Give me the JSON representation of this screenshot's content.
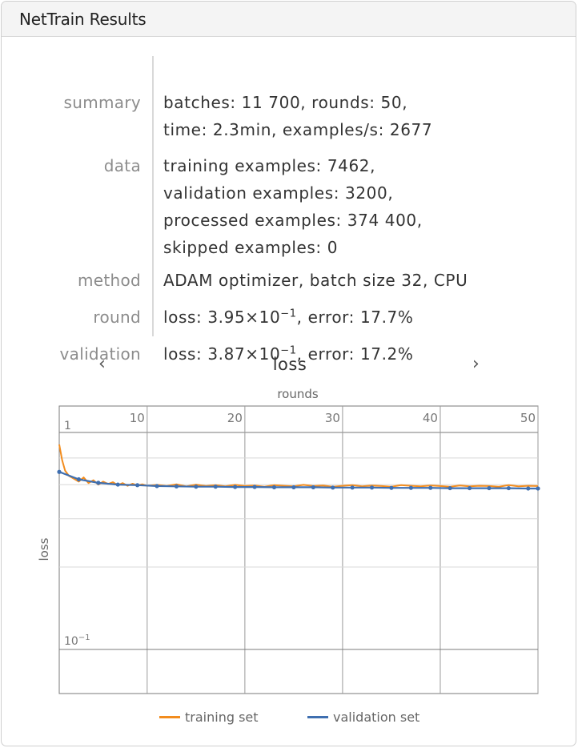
{
  "window": {
    "title": "NetTrain Results"
  },
  "summary": {
    "rows": [
      {
        "label": "summary",
        "lines": [
          "batches: 11 700, rounds: 50,",
          "time: 2.3min, examples/s: 2677"
        ]
      },
      {
        "label": "data",
        "lines": [
          "training examples: 7462,",
          "validation examples: 3200,",
          "processed examples: 374 400,",
          "skipped examples: 0"
        ]
      },
      {
        "label": "method",
        "lines": [
          "ADAM optimizer, batch size 32, CPU"
        ]
      }
    ],
    "round": {
      "label": "round",
      "loss_prefix": "loss: ",
      "loss_mantissa": "3.95",
      "times": "×",
      "base": "10",
      "exponent": "−1",
      "error_text": ", error: 17.7%"
    },
    "validation": {
      "label": "validation",
      "loss_prefix": "loss: ",
      "loss_mantissa": "3.87",
      "times": "×",
      "base": "10",
      "exponent": "−1",
      "error_text": ", error: 17.2%"
    }
  },
  "nav": {
    "prev_icon": "‹",
    "metric": "loss",
    "next_icon": "›"
  },
  "chart_data": {
    "type": "line",
    "xlabel": "rounds",
    "ylabel": "loss",
    "x_ticks": [
      "1",
      "10",
      "20",
      "30",
      "40",
      "50"
    ],
    "y_tick_label_base": "10",
    "y_tick_label_exp": "−1",
    "xlim": [
      1,
      50
    ],
    "ylim": [
      0.085,
      0.62
    ],
    "yscale": "log",
    "grid": true,
    "legend_position": "bottom",
    "series": [
      {
        "name": "training set",
        "color": "#f28c1e",
        "x_rounds": [
          1,
          1.3,
          1.6,
          2,
          2.5,
          3,
          3.5,
          4,
          4.5,
          5,
          5.5,
          6,
          6.5,
          7,
          7.5,
          8,
          8.5,
          9,
          9.5,
          10,
          11,
          12,
          13,
          14,
          15,
          16,
          17,
          18,
          19,
          20,
          21,
          22,
          23,
          24,
          25,
          26,
          27,
          28,
          29,
          30,
          31,
          32,
          33,
          34,
          35,
          36,
          37,
          38,
          39,
          40,
          41,
          42,
          43,
          44,
          45,
          46,
          47,
          48,
          49,
          50
        ],
        "values": [
          0.56,
          0.49,
          0.45,
          0.43,
          0.42,
          0.41,
          0.425,
          0.405,
          0.415,
          0.4,
          0.41,
          0.402,
          0.408,
          0.398,
          0.405,
          0.396,
          0.403,
          0.397,
          0.401,
          0.396,
          0.399,
          0.395,
          0.401,
          0.394,
          0.4,
          0.395,
          0.398,
          0.394,
          0.399,
          0.395,
          0.397,
          0.393,
          0.398,
          0.396,
          0.394,
          0.399,
          0.395,
          0.397,
          0.393,
          0.396,
          0.398,
          0.394,
          0.397,
          0.395,
          0.393,
          0.398,
          0.396,
          0.394,
          0.397,
          0.395,
          0.393,
          0.397,
          0.394,
          0.396,
          0.395,
          0.393,
          0.398,
          0.394,
          0.396,
          0.395
        ]
      },
      {
        "name": "validation set",
        "color": "#3f6fb0",
        "x_rounds": [
          1,
          3,
          5,
          7,
          9,
          11,
          13,
          15,
          17,
          19,
          21,
          23,
          25,
          27,
          29,
          31,
          33,
          35,
          37,
          39,
          41,
          43,
          45,
          47,
          49,
          50
        ],
        "values": [
          0.445,
          0.418,
          0.406,
          0.4,
          0.398,
          0.395,
          0.394,
          0.393,
          0.393,
          0.392,
          0.392,
          0.391,
          0.391,
          0.391,
          0.39,
          0.39,
          0.39,
          0.389,
          0.389,
          0.389,
          0.388,
          0.388,
          0.388,
          0.388,
          0.387,
          0.387
        ]
      }
    ]
  },
  "legend": {
    "training_label": "training set",
    "validation_label": "validation set"
  }
}
